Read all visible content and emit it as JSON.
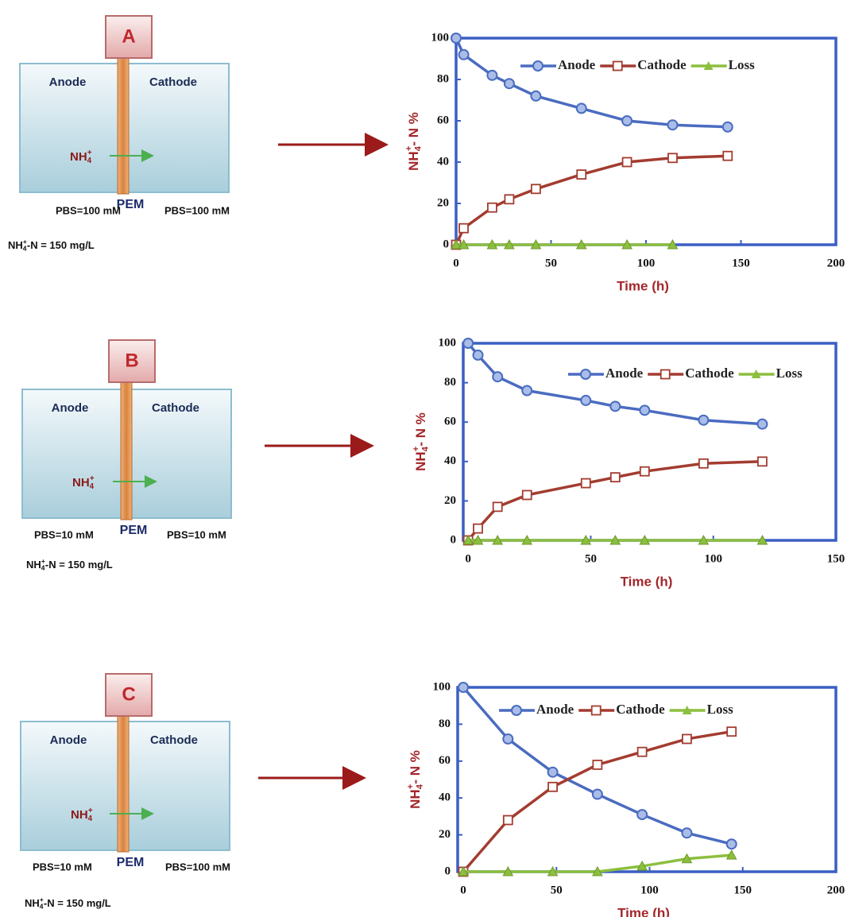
{
  "panels": [
    {
      "label": "A",
      "anode": "Anode",
      "cathode": "Cathode",
      "ion": {
        "base": "NH",
        "sub": "4",
        "sup": "+"
      },
      "pem": "PEM",
      "pbs_left": "PBS=100 mM",
      "pbs_right": "PBS=100 mM",
      "conc": {
        "base": "NH",
        "sub": "4",
        "sup": "+",
        "rest": "-N = 150 mg/L"
      }
    },
    {
      "label": "B",
      "anode": "Anode",
      "cathode": "Cathode",
      "ion": {
        "base": "NH",
        "sub": "4",
        "sup": "+"
      },
      "pem": "PEM",
      "pbs_left": "PBS=10 mM",
      "pbs_right": "PBS=10 mM",
      "conc": {
        "base": "NH",
        "sub": "4",
        "sup": "+",
        "rest": "-N = 150 mg/L"
      }
    },
    {
      "label": "C",
      "anode": "Anode",
      "cathode": "Cathode",
      "ion": {
        "base": "NH",
        "sub": "4",
        "sup": "+"
      },
      "pem": "PEM",
      "pbs_left": "PBS=10 mM",
      "pbs_right": "PBS=100 mM",
      "conc": {
        "base": "NH",
        "sub": "4",
        "sup": "+",
        "rest": "-N = 150 mg/L"
      }
    }
  ],
  "chart_data": [
    {
      "type": "line",
      "xlabel": "Time (h)",
      "ylabel": {
        "base": "NH",
        "sub": "4",
        "sup": "+",
        "rest": "- N %"
      },
      "x": [
        0,
        4,
        19,
        28,
        42,
        66,
        90,
        114,
        143
      ],
      "series": [
        {
          "name": "Anode",
          "color": "#4a6cc0",
          "values": [
            100,
            92,
            82,
            78,
            72,
            66,
            60,
            58,
            57
          ]
        },
        {
          "name": "Cathode",
          "color": "#a33c30",
          "values": [
            0,
            8,
            18,
            22,
            27,
            34,
            40,
            42,
            43
          ]
        },
        {
          "name": "Loss",
          "color": "#8cbf3f",
          "values": [
            0,
            0,
            0,
            0,
            0,
            0,
            0,
            0,
            null
          ]
        }
      ],
      "xlim": [
        0,
        200
      ],
      "xticks": [
        0,
        50,
        100,
        150,
        200
      ],
      "ylim": [
        0,
        100
      ],
      "yticks": [
        0,
        20,
        40,
        60,
        80,
        100
      ]
    },
    {
      "type": "line",
      "xlabel": "Time (h)",
      "ylabel": {
        "base": "NH",
        "sub": "4",
        "sup": "+",
        "rest": "- N %"
      },
      "x": [
        0,
        4,
        12,
        24,
        48,
        60,
        72,
        96,
        120
      ],
      "series": [
        {
          "name": "Anode",
          "color": "#4a6cc0",
          "values": [
            100,
            94,
            83,
            76,
            71,
            68,
            66,
            61,
            59
          ]
        },
        {
          "name": "Cathode",
          "color": "#a33c30",
          "values": [
            0,
            6,
            17,
            23,
            29,
            32,
            35,
            39,
            40
          ]
        },
        {
          "name": "Loss",
          "color": "#8cbf3f",
          "values": [
            0,
            0,
            0,
            0,
            0,
            0,
            0,
            0,
            0
          ]
        }
      ],
      "xlim": [
        -2,
        150
      ],
      "xticks": [
        0,
        50,
        100,
        150
      ],
      "ylim": [
        0,
        100
      ],
      "yticks": [
        0,
        20,
        40,
        60,
        80,
        100
      ]
    },
    {
      "type": "line",
      "xlabel": "Time (h)",
      "ylabel": {
        "base": "NH",
        "sub": "4",
        "sup": "+",
        "rest": "- N %"
      },
      "x": [
        0,
        24,
        48,
        72,
        96,
        120,
        144
      ],
      "series": [
        {
          "name": "Anode",
          "color": "#4a6cc0",
          "values": [
            100,
            72,
            54,
            42,
            31,
            21,
            15
          ]
        },
        {
          "name": "Cathode",
          "color": "#a33c30",
          "values": [
            0,
            28,
            46,
            58,
            65,
            72,
            76
          ]
        },
        {
          "name": "Loss",
          "color": "#8cbf3f",
          "values": [
            0,
            0,
            0,
            0,
            3,
            7,
            9
          ]
        }
      ],
      "xlim": [
        -3,
        200
      ],
      "xticks": [
        0,
        50,
        100,
        150,
        200
      ],
      "ylim": [
        0,
        100
      ],
      "yticks": [
        0,
        20,
        40,
        60,
        80,
        100
      ]
    }
  ]
}
